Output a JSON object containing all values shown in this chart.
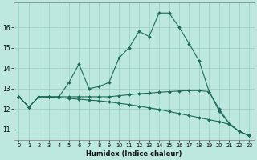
{
  "xlabel": "Humidex (Indice chaleur)",
  "xlim": [
    -0.5,
    23.5
  ],
  "ylim": [
    10.5,
    17.2
  ],
  "yticks": [
    11,
    12,
    13,
    14,
    15,
    16
  ],
  "xticks": [
    0,
    1,
    2,
    3,
    4,
    5,
    6,
    7,
    8,
    9,
    10,
    11,
    12,
    13,
    14,
    15,
    16,
    17,
    18,
    19,
    20,
    21,
    22,
    23
  ],
  "bg_color": "#bde8e0",
  "grid_color": "#99ccbb",
  "line_color": "#1a6b5a",
  "lines": [
    {
      "x": [
        0,
        1,
        2,
        3,
        4,
        5,
        6,
        7,
        8,
        9,
        10,
        11,
        12,
        13,
        14,
        15,
        16,
        17,
        18,
        19,
        20,
        21,
        22,
        23
      ],
      "y": [
        12.6,
        12.1,
        12.6,
        12.6,
        12.6,
        13.3,
        14.2,
        13.0,
        13.1,
        13.3,
        14.5,
        15.0,
        15.8,
        15.55,
        16.7,
        16.7,
        16.0,
        15.2,
        14.35,
        12.85,
        11.9,
        11.3,
        10.9,
        10.7
      ]
    },
    {
      "x": [
        0,
        1,
        2,
        3,
        4,
        5,
        6,
        7,
        8,
        9,
        10,
        11,
        12,
        13,
        14,
        15,
        16,
        17,
        18,
        19,
        20,
        21,
        22,
        23
      ],
      "y": [
        12.6,
        12.1,
        12.6,
        12.6,
        12.6,
        12.6,
        12.6,
        12.6,
        12.6,
        12.6,
        12.65,
        12.7,
        12.75,
        12.78,
        12.82,
        12.85,
        12.88,
        12.9,
        12.9,
        12.85,
        12.0,
        11.3,
        10.9,
        10.7
      ]
    },
    {
      "x": [
        0,
        1,
        2,
        3,
        4,
        5,
        6,
        7,
        8,
        9,
        10,
        11,
        12,
        13,
        14,
        15,
        16,
        17,
        18,
        19,
        20,
        21,
        22,
        23
      ],
      "y": [
        12.6,
        12.1,
        12.6,
        12.58,
        12.56,
        12.52,
        12.48,
        12.44,
        12.4,
        12.35,
        12.28,
        12.22,
        12.14,
        12.06,
        11.98,
        11.88,
        11.78,
        11.68,
        11.58,
        11.48,
        11.38,
        11.25,
        10.9,
        10.7
      ]
    }
  ]
}
